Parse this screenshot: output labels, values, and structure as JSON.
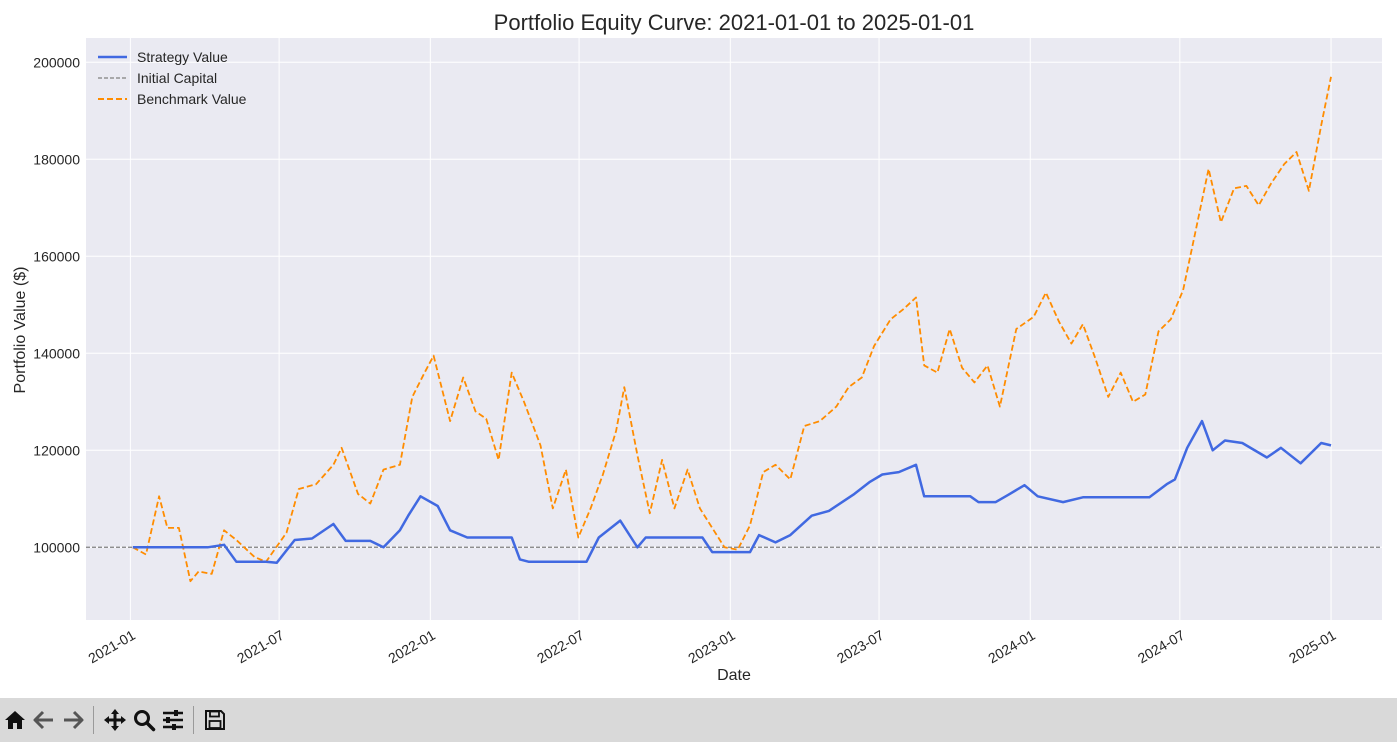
{
  "chart_data": {
    "type": "line",
    "title": "Portfolio Equity Curve: 2021-01-01 to 2025-01-01",
    "xlabel": "Date",
    "ylabel": "Portfolio Value ($)",
    "x_range": [
      "2020-11-08",
      "2025-03-04"
    ],
    "ylim": [
      85000,
      205000
    ],
    "grid": true,
    "legend_position": "top-left",
    "x_ticks": [
      "2021-01",
      "2021-07",
      "2022-01",
      "2022-07",
      "2023-01",
      "2023-07",
      "2024-01",
      "2024-07",
      "2025-01"
    ],
    "y_ticks": [
      100000,
      120000,
      140000,
      160000,
      180000,
      200000
    ],
    "y_tick_labels": [
      "100000",
      "120000",
      "140000",
      "160000",
      "180000",
      "200000"
    ],
    "reference_line": {
      "name": "Initial Capital",
      "value": 100000,
      "color": "#808080",
      "style": "dashed"
    },
    "series": [
      {
        "name": "Strategy Value",
        "color": "#4169e1",
        "style": "solid",
        "x": [
          "2021-01-04",
          "2021-02-15",
          "2021-04-05",
          "2021-04-25",
          "2021-05-10",
          "2021-06-15",
          "2021-06-28",
          "2021-07-20",
          "2021-08-10",
          "2021-09-05",
          "2021-09-20",
          "2021-10-20",
          "2021-11-05",
          "2021-11-25",
          "2021-12-05",
          "2021-12-20",
          "2022-01-10",
          "2022-01-25",
          "2022-02-15",
          "2022-04-10",
          "2022-04-20",
          "2022-05-01",
          "2022-06-15",
          "2022-07-10",
          "2022-07-25",
          "2022-08-20",
          "2022-09-10",
          "2022-09-20",
          "2022-11-05",
          "2022-11-28",
          "2022-12-10",
          "2023-01-25",
          "2023-02-05",
          "2023-02-25",
          "2023-03-15",
          "2023-04-10",
          "2023-05-01",
          "2023-06-01",
          "2023-06-20",
          "2023-07-05",
          "2023-07-25",
          "2023-08-15",
          "2023-08-25",
          "2023-09-05",
          "2023-10-20",
          "2023-10-30",
          "2023-11-20",
          "2023-12-05",
          "2023-12-25",
          "2024-01-10",
          "2024-02-10",
          "2024-03-05",
          "2024-05-10",
          "2024-05-25",
          "2024-06-15",
          "2024-06-25",
          "2024-07-10",
          "2024-07-28",
          "2024-08-10",
          "2024-08-25",
          "2024-09-15",
          "2024-10-15",
          "2024-11-01",
          "2024-11-25",
          "2024-12-20",
          "2025-01-01"
        ],
        "values": [
          100000,
          100000,
          100000,
          100500,
          97000,
          97000,
          96800,
          101500,
          101800,
          104800,
          101300,
          101300,
          100000,
          103500,
          106500,
          110500,
          108500,
          103500,
          102000,
          102000,
          97500,
          97000,
          97000,
          97000,
          102000,
          105500,
          100000,
          102000,
          102000,
          102000,
          99000,
          99000,
          102500,
          101000,
          102500,
          106500,
          107500,
          111000,
          113500,
          115000,
          115500,
          117000,
          110500,
          110500,
          110500,
          109300,
          109300,
          110800,
          112800,
          110500,
          109300,
          110300,
          110300,
          110300,
          113000,
          114000,
          120500,
          126000,
          120000,
          122000,
          121500,
          118500,
          120500,
          117300,
          121500,
          121000
        ]
      },
      {
        "name": "Benchmark Value",
        "color": "#ff8c00",
        "style": "dashed",
        "x": [
          "2021-01-04",
          "2021-01-20",
          "2021-02-05",
          "2021-02-15",
          "2021-03-01",
          "2021-03-15",
          "2021-03-25",
          "2021-04-10",
          "2021-04-25",
          "2021-05-10",
          "2021-06-01",
          "2021-06-15",
          "2021-07-10",
          "2021-07-25",
          "2021-08-15",
          "2021-09-05",
          "2021-09-15",
          "2021-10-05",
          "2021-10-20",
          "2021-11-05",
          "2021-11-25",
          "2021-12-10",
          "2021-12-25",
          "2022-01-05",
          "2022-01-25",
          "2022-02-10",
          "2022-02-25",
          "2022-03-10",
          "2022-03-25",
          "2022-04-10",
          "2022-04-25",
          "2022-05-15",
          "2022-05-30",
          "2022-06-15",
          "2022-06-30",
          "2022-07-15",
          "2022-07-30",
          "2022-08-15",
          "2022-08-25",
          "2022-09-10",
          "2022-09-25",
          "2022-10-10",
          "2022-10-25",
          "2022-11-10",
          "2022-11-25",
          "2022-12-10",
          "2022-12-25",
          "2023-01-10",
          "2023-01-25",
          "2023-02-10",
          "2023-02-25",
          "2023-03-15",
          "2023-04-01",
          "2023-04-20",
          "2023-05-10",
          "2023-05-25",
          "2023-06-10",
          "2023-06-25",
          "2023-07-15",
          "2023-07-30",
          "2023-08-15",
          "2023-08-25",
          "2023-09-10",
          "2023-09-25",
          "2023-10-10",
          "2023-10-25",
          "2023-11-10",
          "2023-11-25",
          "2023-12-15",
          "2024-01-05",
          "2024-01-20",
          "2024-02-05",
          "2024-02-20",
          "2024-03-05",
          "2024-03-20",
          "2024-04-05",
          "2024-04-20",
          "2024-05-05",
          "2024-05-20",
          "2024-06-05",
          "2024-06-20",
          "2024-07-05",
          "2024-07-20",
          "2024-08-05",
          "2024-08-20",
          "2024-09-05",
          "2024-09-20",
          "2024-10-05",
          "2024-10-20",
          "2024-11-05",
          "2024-11-20",
          "2024-12-05",
          "2024-12-20",
          "2025-01-01"
        ],
        "values": [
          100000,
          98500,
          110500,
          104000,
          104000,
          93000,
          95000,
          94500,
          103500,
          101500,
          98000,
          97000,
          103000,
          112000,
          113000,
          117000,
          120500,
          111000,
          109000,
          116000,
          117000,
          131000,
          136000,
          139500,
          126000,
          135000,
          128000,
          126500,
          118000,
          136000,
          130000,
          121000,
          108000,
          116000,
          102000,
          108000,
          115000,
          124000,
          133000,
          119000,
          107000,
          118000,
          108000,
          116000,
          108000,
          104000,
          100000,
          99500,
          104500,
          115500,
          117000,
          114000,
          125000,
          126000,
          129000,
          133000,
          135000,
          141500,
          147000,
          149000,
          151500,
          137500,
          136000,
          145000,
          137000,
          134000,
          137500,
          129000,
          145000,
          147500,
          152500,
          146500,
          142000,
          146000,
          139000,
          131000,
          136000,
          130000,
          131500,
          144500,
          147000,
          153000,
          165000,
          178000,
          167000,
          174000,
          174500,
          170500,
          175000,
          179000,
          181500,
          173500,
          187000,
          197000
        ]
      }
    ]
  },
  "toolbar": {
    "buttons": [
      {
        "name": "home-icon"
      },
      {
        "name": "back-arrow-icon"
      },
      {
        "name": "forward-arrow-icon"
      },
      {
        "name": "pan-move-icon"
      },
      {
        "name": "zoom-magnifier-icon"
      },
      {
        "name": "configure-subplots-icon"
      },
      {
        "name": "save-floppy-icon"
      }
    ]
  }
}
